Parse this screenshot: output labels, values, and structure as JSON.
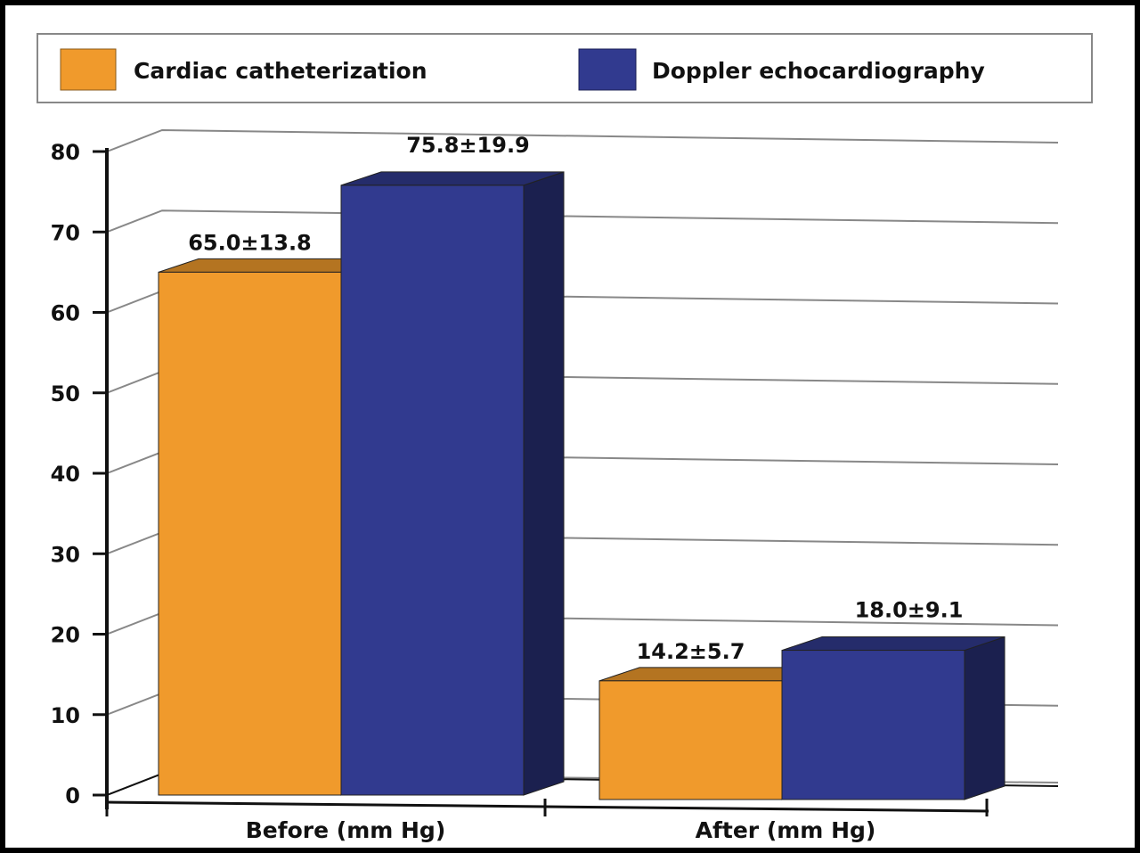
{
  "chart_data": {
    "type": "bar",
    "style": "3d-clustered",
    "categories": [
      "Before (mm Hg)",
      "After (mm Hg)"
    ],
    "series": [
      {
        "name": "Cardiac catheterization",
        "color": "#f09a2c",
        "values": [
          65.0,
          14.2
        ],
        "labels": [
          "65.0±13.8",
          "14.2±5.7"
        ]
      },
      {
        "name": "Doppler echocardiography",
        "color": "#313a8f",
        "values": [
          75.8,
          18.0
        ],
        "labels": [
          "75.8±19.9",
          "18.0±9.1"
        ]
      }
    ],
    "yticks": [
      "0",
      "10",
      "20",
      "30",
      "40",
      "50",
      "60",
      "70",
      "80"
    ],
    "ylim": [
      0,
      80
    ],
    "grid": true,
    "legend": "top",
    "title": "",
    "xlabel": "",
    "ylabel": ""
  }
}
